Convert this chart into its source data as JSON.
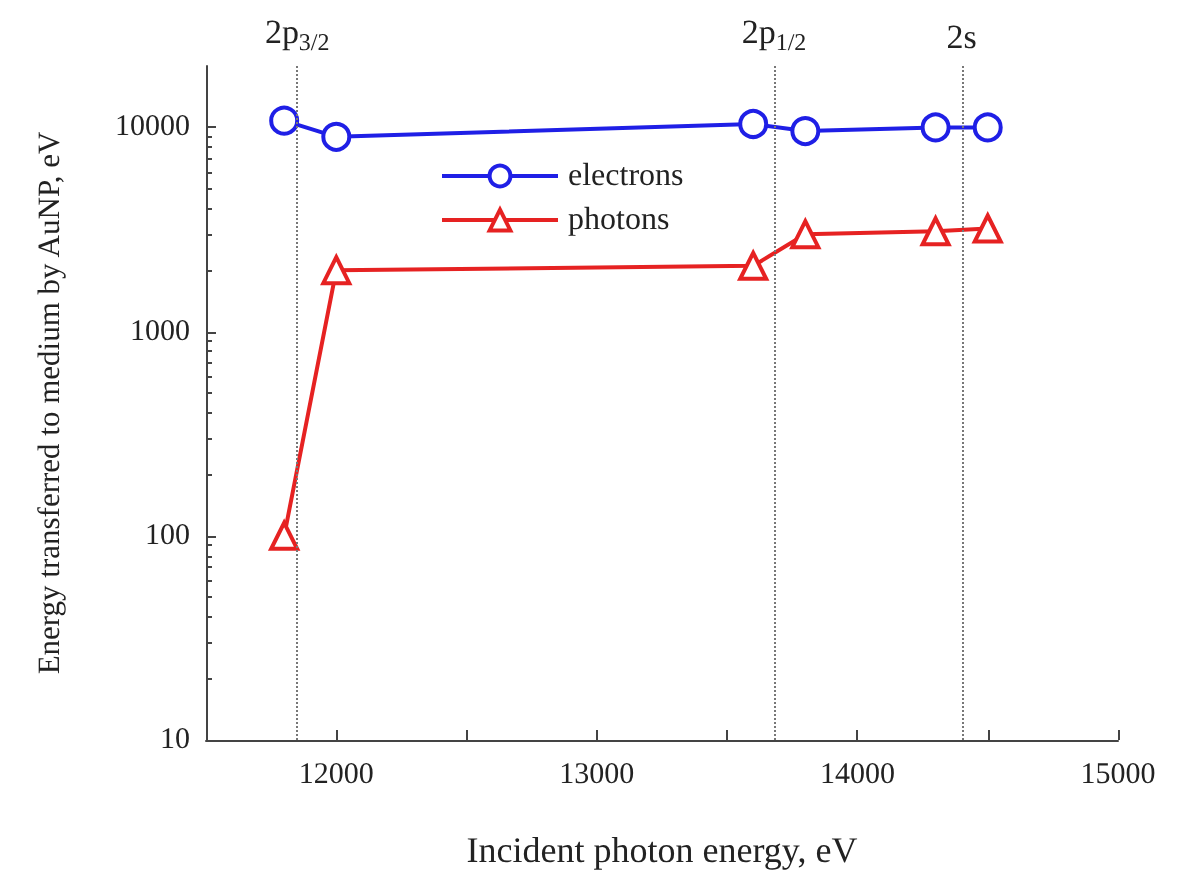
{
  "chart_data": {
    "type": "line",
    "xlabel": "Incident photon energy, eV",
    "ylabel": "Energy transferred to medium by AuNP, eV",
    "xlim": [
      11500,
      15000
    ],
    "xticks": [
      {
        "value": 11500,
        "label": null
      },
      12000,
      {
        "value": 12500,
        "label": null
      },
      13000,
      {
        "value": 13500,
        "label": null
      },
      14000,
      {
        "value": 14500,
        "label": null
      },
      15000
    ],
    "ylim": [
      10,
      20000
    ],
    "yticks": [
      10,
      100,
      1000,
      10000
    ],
    "log": "y",
    "grid": false,
    "legend": "top",
    "line_style": "solid",
    "series": [
      {
        "name": "electrons",
        "color": "#1f1fe6",
        "marker": "circle",
        "x": [
          11800,
          12000,
          13600,
          13800,
          14300,
          14500
        ],
        "values": [
          10800,
          9000,
          10400,
          9600,
          10000,
          10000
        ]
      },
      {
        "name": "photons",
        "color": "#e62222",
        "marker": "triangle",
        "x": [
          11800,
          12000,
          13600,
          13800,
          14300,
          14500
        ],
        "values": [
          100,
          2000,
          2100,
          3000,
          3100,
          3200
        ]
      }
    ],
    "ref_lines": [
      {
        "axis": "x",
        "value": 11850,
        "label": "2p$_{3/2}$",
        "color": "#777777",
        "line_style": "dotted"
      },
      {
        "axis": "x",
        "value": 13680,
        "label": "2p$_{1/2}$",
        "color": "#777777",
        "line_style": "dotted"
      },
      {
        "axis": "x",
        "value": 14400,
        "label": "2s",
        "color": "#777777",
        "line_style": "dotted"
      }
    ]
  }
}
